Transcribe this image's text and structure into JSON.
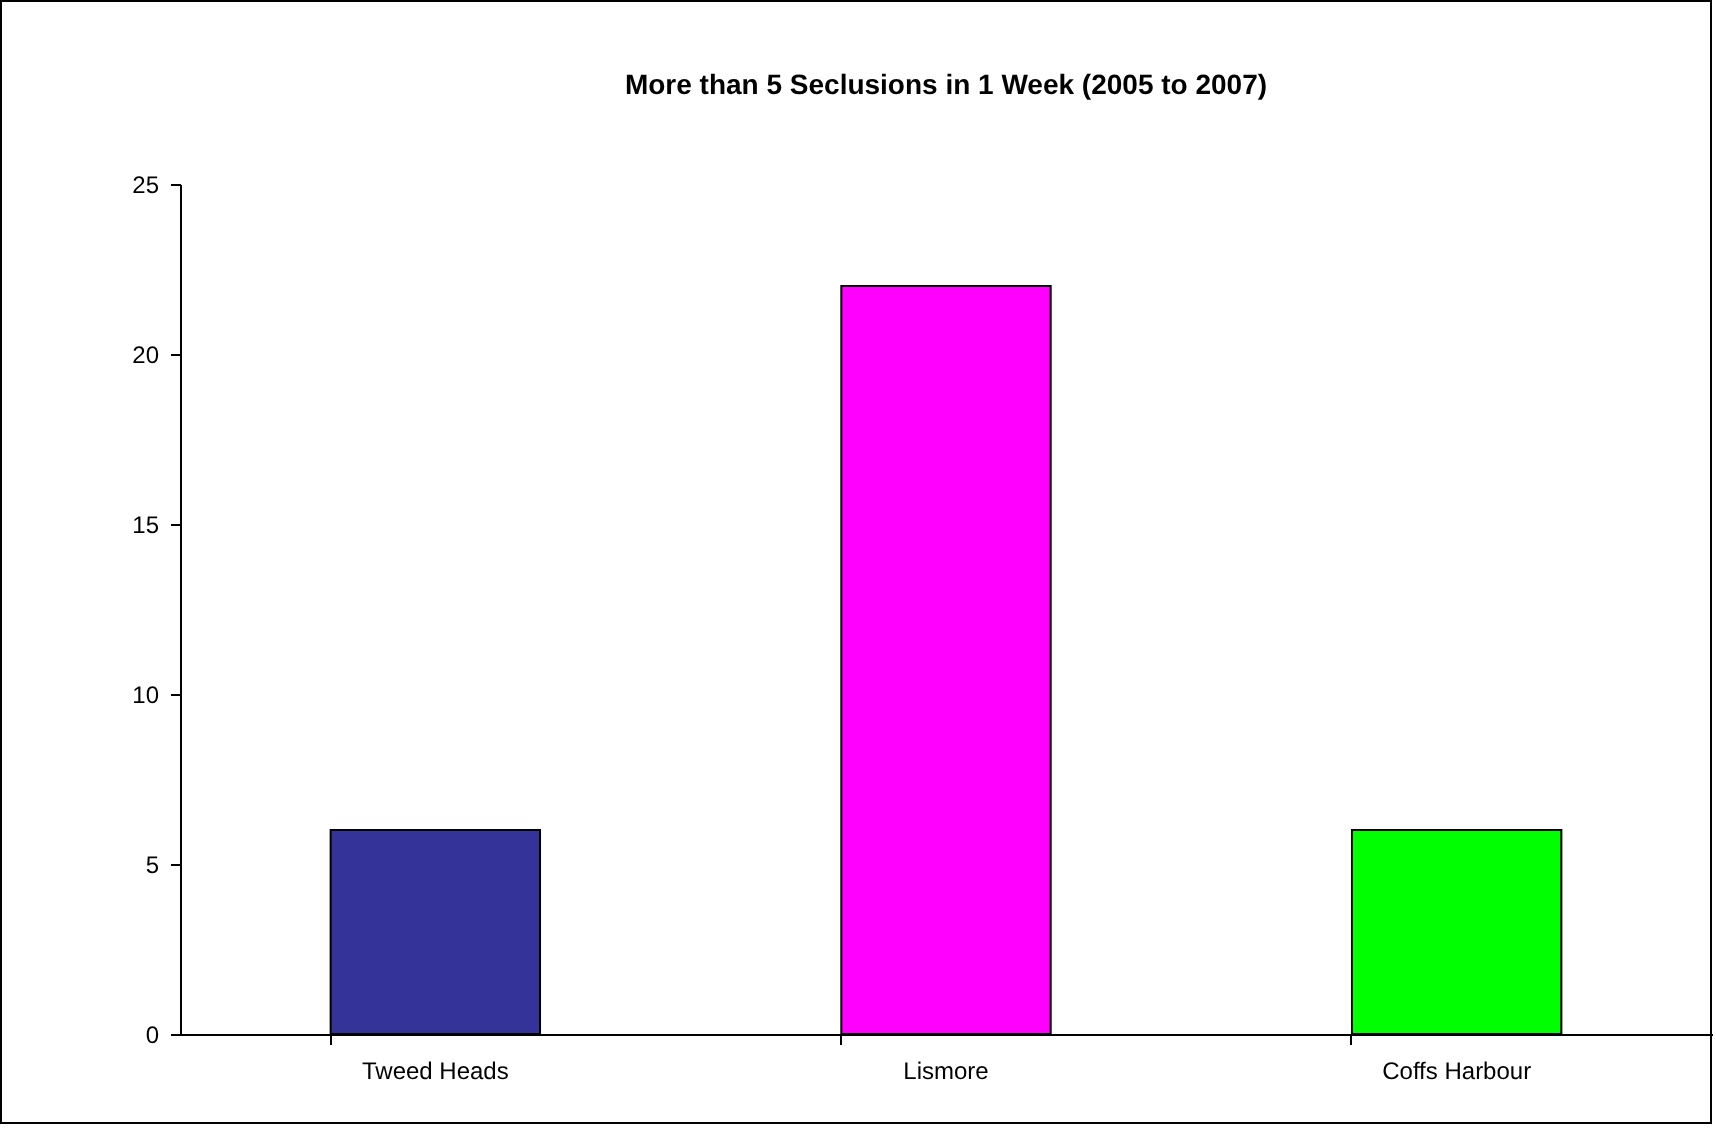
{
  "chart_data": {
    "type": "bar",
    "title": "More than 5 Seclusions in 1 Week (2005 to 2007)",
    "categories": [
      "Tweed Heads",
      "Lismore",
      "Coffs Harbour"
    ],
    "values": [
      6,
      22,
      6
    ],
    "colors": [
      "#333399",
      "#ff00ff",
      "#00ff00"
    ],
    "ylim": [
      0,
      25
    ],
    "yticks": [
      0,
      5,
      10,
      15,
      20,
      25
    ],
    "grid": false,
    "legend": false
  }
}
